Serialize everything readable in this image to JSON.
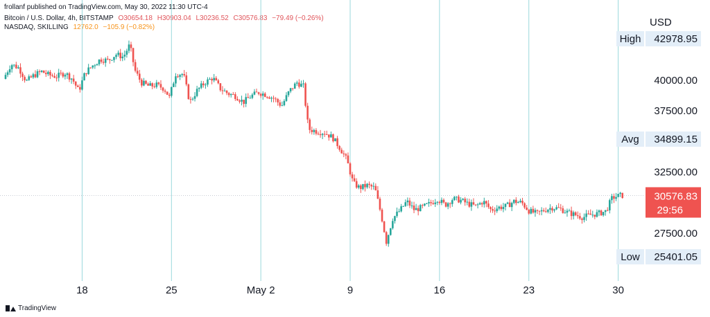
{
  "header": {
    "publish_line": "frollanf published on TradingView.com, May 30, 2022 11:30 UTC-4",
    "symbol1": {
      "name": "Bitcoin / U.S. Dollar, 4h, BITSTAMP",
      "open": "O30654.18",
      "high": "H30903.04",
      "low": "L30236.52",
      "close": "C30576.83",
      "change": "−79.49 (−0.26%)"
    },
    "symbol2": {
      "name": "NASDAQ, SKILLING",
      "value": "12762.0",
      "change": "−105.9 (−0.82%)"
    }
  },
  "axis": {
    "currency": "USD"
  },
  "footer": {
    "brand": "TradingView"
  },
  "colors": {
    "up": "#26a69a",
    "down": "#ef5350",
    "vline": "#9ad8dc",
    "label_bg": "#e3eef8",
    "price_tag": "#ef5350"
  },
  "chart_data": {
    "type": "candlestick",
    "title": "",
    "interval": "4h",
    "ylim": [
      24500,
      44000
    ],
    "y_ticks": [
      {
        "value": 27500,
        "label": "27500.00"
      },
      {
        "value": 32500,
        "label": "32500.00"
      },
      {
        "value": 37500,
        "label": "37500.00"
      },
      {
        "value": 40000,
        "label": "40000.00"
      }
    ],
    "x_ticks": [
      {
        "label": "18",
        "day": 18
      },
      {
        "label": "25",
        "day": 25
      },
      {
        "label": "May 2",
        "day": 32
      },
      {
        "label": "9",
        "day": 39
      },
      {
        "label": "16",
        "day": 46
      },
      {
        "label": "23",
        "day": 53
      },
      {
        "label": "30",
        "day": 60
      }
    ],
    "vertical_lines_days": [
      18,
      25,
      32,
      39,
      46,
      53,
      60
    ],
    "markers": {
      "high": {
        "label": "High",
        "value": "42978.95"
      },
      "avg": {
        "label": "Avg",
        "value": "34899.15"
      },
      "low": {
        "label": "Low",
        "value": "25401.05"
      }
    },
    "last_price": {
      "value": "30576.83",
      "countdown": "29:56"
    },
    "series": [
      {
        "day": 12.0,
        "price": 40100
      },
      {
        "day": 12.6,
        "price": 41300
      },
      {
        "day": 13.2,
        "price": 41000
      },
      {
        "day": 13.8,
        "price": 39900
      },
      {
        "day": 14.4,
        "price": 40400
      },
      {
        "day": 15.0,
        "price": 40700
      },
      {
        "day": 15.6,
        "price": 40400
      },
      {
        "day": 16.2,
        "price": 40300
      },
      {
        "day": 16.8,
        "price": 40600
      },
      {
        "day": 17.4,
        "price": 40100
      },
      {
        "day": 17.9,
        "price": 39100
      },
      {
        "day": 18.4,
        "price": 40600
      },
      {
        "day": 19.0,
        "price": 41200
      },
      {
        "day": 19.6,
        "price": 41700
      },
      {
        "day": 20.2,
        "price": 41600
      },
      {
        "day": 20.8,
        "price": 42100
      },
      {
        "day": 21.4,
        "price": 41900
      },
      {
        "day": 21.9,
        "price": 42900
      },
      {
        "day": 22.3,
        "price": 40800
      },
      {
        "day": 22.8,
        "price": 39800
      },
      {
        "day": 23.4,
        "price": 39500
      },
      {
        "day": 24.0,
        "price": 39600
      },
      {
        "day": 24.6,
        "price": 39300
      },
      {
        "day": 25.0,
        "price": 38600
      },
      {
        "day": 25.5,
        "price": 40500
      },
      {
        "day": 26.1,
        "price": 40500
      },
      {
        "day": 26.6,
        "price": 38200
      },
      {
        "day": 27.2,
        "price": 39200
      },
      {
        "day": 27.8,
        "price": 39800
      },
      {
        "day": 28.4,
        "price": 40200
      },
      {
        "day": 29.0,
        "price": 39300
      },
      {
        "day": 29.6,
        "price": 38900
      },
      {
        "day": 30.2,
        "price": 38700
      },
      {
        "day": 30.8,
        "price": 38200
      },
      {
        "day": 31.4,
        "price": 38700
      },
      {
        "day": 32.0,
        "price": 39000
      },
      {
        "day": 32.6,
        "price": 38800
      },
      {
        "day": 33.2,
        "price": 38500
      },
      {
        "day": 33.8,
        "price": 37900
      },
      {
        "day": 34.4,
        "price": 39100
      },
      {
        "day": 35.0,
        "price": 39800
      },
      {
        "day": 35.5,
        "price": 39500
      },
      {
        "day": 35.9,
        "price": 36000
      },
      {
        "day": 36.6,
        "price": 35800
      },
      {
        "day": 37.2,
        "price": 35700
      },
      {
        "day": 37.8,
        "price": 35300
      },
      {
        "day": 38.4,
        "price": 34400
      },
      {
        "day": 38.9,
        "price": 33500
      },
      {
        "day": 39.4,
        "price": 31600
      },
      {
        "day": 39.9,
        "price": 31200
      },
      {
        "day": 40.5,
        "price": 31400
      },
      {
        "day": 41.1,
        "price": 31200
      },
      {
        "day": 41.6,
        "price": 29000
      },
      {
        "day": 42.0,
        "price": 26800
      },
      {
        "day": 42.5,
        "price": 28700
      },
      {
        "day": 43.1,
        "price": 29400
      },
      {
        "day": 43.6,
        "price": 30100
      },
      {
        "day": 44.2,
        "price": 29400
      },
      {
        "day": 44.8,
        "price": 29600
      },
      {
        "day": 45.4,
        "price": 29900
      },
      {
        "day": 46.0,
        "price": 30300
      },
      {
        "day": 46.6,
        "price": 29800
      },
      {
        "day": 47.2,
        "price": 30300
      },
      {
        "day": 47.8,
        "price": 30200
      },
      {
        "day": 48.4,
        "price": 29900
      },
      {
        "day": 49.0,
        "price": 29700
      },
      {
        "day": 49.6,
        "price": 30100
      },
      {
        "day": 50.2,
        "price": 29400
      },
      {
        "day": 50.8,
        "price": 29600
      },
      {
        "day": 51.4,
        "price": 29700
      },
      {
        "day": 52.0,
        "price": 30100
      },
      {
        "day": 52.6,
        "price": 30000
      },
      {
        "day": 53.2,
        "price": 29300
      },
      {
        "day": 53.8,
        "price": 29100
      },
      {
        "day": 54.4,
        "price": 29400
      },
      {
        "day": 55.0,
        "price": 29600
      },
      {
        "day": 55.6,
        "price": 29500
      },
      {
        "day": 56.2,
        "price": 29200
      },
      {
        "day": 56.8,
        "price": 29000
      },
      {
        "day": 57.4,
        "price": 28800
      },
      {
        "day": 58.0,
        "price": 29000
      },
      {
        "day": 58.6,
        "price": 29100
      },
      {
        "day": 59.2,
        "price": 29300
      },
      {
        "day": 59.7,
        "price": 30400
      },
      {
        "day": 60.3,
        "price": 30577
      }
    ]
  }
}
